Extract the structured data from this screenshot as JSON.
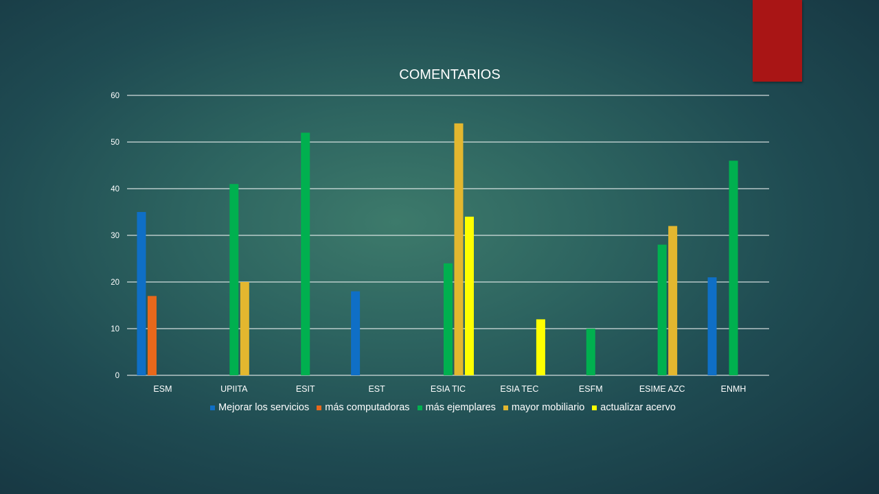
{
  "chart_data": {
    "type": "bar",
    "title": "COMENTARIOS",
    "categories": [
      "ESM",
      "UPIITA",
      "ESIT",
      "EST",
      "ESIA TIC",
      "ESIA TEC",
      "ESFM",
      "ESIME AZC",
      "ENMH"
    ],
    "series": [
      {
        "name": "Mejorar los servicios",
        "color": "#0f6fc6",
        "values": [
          35,
          0,
          0,
          18,
          0,
          0,
          0,
          0,
          21
        ]
      },
      {
        "name": "más computadoras",
        "color": "#e8681b",
        "values": [
          17,
          0,
          0,
          0,
          0,
          0,
          0,
          0,
          0
        ]
      },
      {
        "name": "más ejemplares",
        "color": "#00b04f",
        "values": [
          0,
          41,
          52,
          0,
          24,
          0,
          10,
          28,
          46
        ]
      },
      {
        "name": "mayor mobiliario",
        "color": "#e3b72f",
        "values": [
          0,
          20,
          0,
          0,
          54,
          0,
          0,
          32,
          0
        ]
      },
      {
        "name": "actualizar acervo",
        "color": "#ffff00",
        "values": [
          0,
          0,
          0,
          0,
          34,
          12,
          0,
          0,
          0
        ]
      }
    ],
    "xlabel": "",
    "ylabel": "",
    "ylim": [
      0,
      60
    ],
    "yticks": [
      0,
      10,
      20,
      30,
      40,
      50,
      60
    ],
    "grid": true,
    "legend": "bottom"
  },
  "decor": {
    "accent_color": "#a91515"
  }
}
